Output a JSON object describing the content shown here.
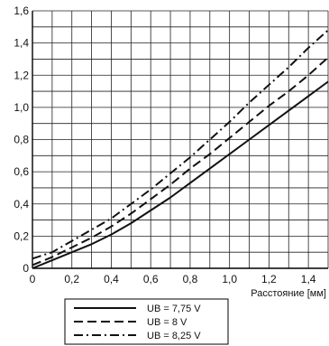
{
  "chart_data": {
    "type": "line",
    "title": "",
    "xlabel": "Расстояние [мм]",
    "ylabel": "",
    "xlim": [
      0,
      1.5
    ],
    "ylim": [
      0,
      1.6
    ],
    "x_ticks": [
      "0",
      "0,2",
      "0,4",
      "0,6",
      "0,8",
      "1,0",
      "1,2",
      "1,4"
    ],
    "y_ticks": [
      "0",
      "0,2",
      "0,4",
      "0,6",
      "0,8",
      "1,0",
      "1,2",
      "1,4",
      "1,6"
    ],
    "grid": true,
    "legend_position": "bottom",
    "series": [
      {
        "name": "UB = 7,75 V",
        "line_style": "solid",
        "color": "#111111",
        "x": [
          0,
          0.1,
          0.2,
          0.3,
          0.4,
          0.5,
          0.6,
          0.7,
          0.8,
          0.9,
          1.0,
          1.1,
          1.2,
          1.3,
          1.4,
          1.5
        ],
        "y": [
          0.0,
          0.05,
          0.1,
          0.15,
          0.21,
          0.28,
          0.36,
          0.44,
          0.53,
          0.62,
          0.71,
          0.8,
          0.89,
          0.98,
          1.07,
          1.16
        ]
      },
      {
        "name": "UB = 8 V",
        "line_style": "dashed",
        "color": "#111111",
        "x": [
          0,
          0.1,
          0.2,
          0.3,
          0.4,
          0.5,
          0.6,
          0.7,
          0.8,
          0.9,
          1.0,
          1.1,
          1.2,
          1.3,
          1.4,
          1.5
        ],
        "y": [
          0.02,
          0.07,
          0.13,
          0.19,
          0.26,
          0.34,
          0.43,
          0.52,
          0.62,
          0.71,
          0.81,
          0.91,
          1.01,
          1.1,
          1.2,
          1.31
        ]
      },
      {
        "name": "UB = 8,25 V",
        "line_style": "dash-dot",
        "color": "#111111",
        "x": [
          0,
          0.1,
          0.2,
          0.3,
          0.4,
          0.5,
          0.6,
          0.7,
          0.8,
          0.9,
          1.0,
          1.1,
          1.2,
          1.3,
          1.4,
          1.5
        ],
        "y": [
          0.06,
          0.1,
          0.17,
          0.24,
          0.31,
          0.4,
          0.49,
          0.59,
          0.69,
          0.8,
          0.91,
          1.03,
          1.14,
          1.25,
          1.37,
          1.48
        ]
      }
    ]
  }
}
